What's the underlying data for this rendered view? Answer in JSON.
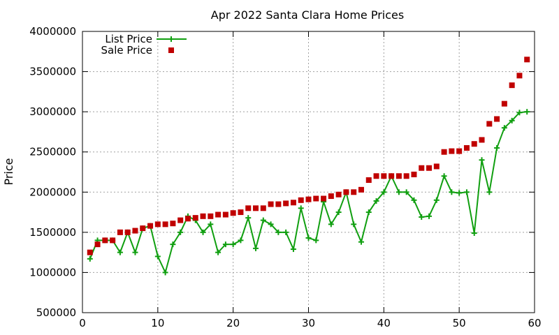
{
  "chart_data": {
    "type": "scatter",
    "title": "Apr 2022 Santa Clara Home Prices",
    "xlabel": "",
    "ylabel": "Price",
    "xlim": [
      0,
      60
    ],
    "ylim": [
      500000,
      4000000
    ],
    "xticks": [
      0,
      10,
      20,
      30,
      40,
      50,
      60
    ],
    "yticks": [
      500000,
      1000000,
      1500000,
      2000000,
      2500000,
      3000000,
      3500000,
      4000000
    ],
    "grid": true,
    "legend_position": "top-left",
    "series": [
      {
        "name": "List Price",
        "style": "linespoints",
        "marker": "plus",
        "color": "#109f10",
        "x": [
          1,
          2,
          3,
          4,
          5,
          6,
          7,
          8,
          9,
          10,
          11,
          12,
          13,
          14,
          15,
          16,
          17,
          18,
          19,
          20,
          21,
          22,
          23,
          24,
          25,
          26,
          27,
          28,
          29,
          30,
          31,
          32,
          33,
          34,
          35,
          36,
          37,
          38,
          39,
          40,
          41,
          42,
          43,
          44,
          45,
          46,
          47,
          48,
          49,
          50,
          51,
          52,
          53,
          54,
          55,
          56,
          57,
          58,
          59
        ],
        "y": [
          1170000,
          1400000,
          1400000,
          1400000,
          1250000,
          1500000,
          1250000,
          1550000,
          1580000,
          1200000,
          1000000,
          1350000,
          1500000,
          1700000,
          1650000,
          1500000,
          1600000,
          1250000,
          1350000,
          1350000,
          1400000,
          1680000,
          1300000,
          1650000,
          1600000,
          1500000,
          1500000,
          1290000,
          1800000,
          1430000,
          1400000,
          1880000,
          1600000,
          1750000,
          2000000,
          1600000,
          1380000,
          1750000,
          1890000,
          2000000,
          2200000,
          2000000,
          2000000,
          1900000,
          1690000,
          1700000,
          1900000,
          2200000,
          2000000,
          1990000,
          2000000,
          1490000,
          2400000,
          2000000,
          2550000,
          2800000,
          2890000,
          2990000,
          3000000
        ]
      },
      {
        "name": "Sale Price",
        "style": "points",
        "marker": "square",
        "color": "#c00000",
        "x": [
          1,
          2,
          3,
          4,
          5,
          6,
          7,
          8,
          9,
          10,
          11,
          12,
          13,
          14,
          15,
          16,
          17,
          18,
          19,
          20,
          21,
          22,
          23,
          24,
          25,
          26,
          27,
          28,
          29,
          30,
          31,
          32,
          33,
          34,
          35,
          36,
          37,
          38,
          39,
          40,
          41,
          42,
          43,
          44,
          45,
          46,
          47,
          48,
          49,
          50,
          51,
          52,
          53,
          54,
          55,
          56,
          57,
          58,
          59
        ],
        "y": [
          1250000,
          1350000,
          1400000,
          1400000,
          1500000,
          1500000,
          1520000,
          1550000,
          1580000,
          1600000,
          1600000,
          1610000,
          1650000,
          1670000,
          1680000,
          1700000,
          1700000,
          1720000,
          1720000,
          1740000,
          1750000,
          1800000,
          1800000,
          1800000,
          1850000,
          1850000,
          1860000,
          1870000,
          1900000,
          1910000,
          1920000,
          1920000,
          1950000,
          1970000,
          2000000,
          2000000,
          2030000,
          2150000,
          2200000,
          2200000,
          2200000,
          2200000,
          2200000,
          2220000,
          2300000,
          2300000,
          2320000,
          2500000,
          2510000,
          2510000,
          2550000,
          2600000,
          2650000,
          2850000,
          2910000,
          3100000,
          3330000,
          3450000,
          3650000
        ]
      }
    ]
  }
}
